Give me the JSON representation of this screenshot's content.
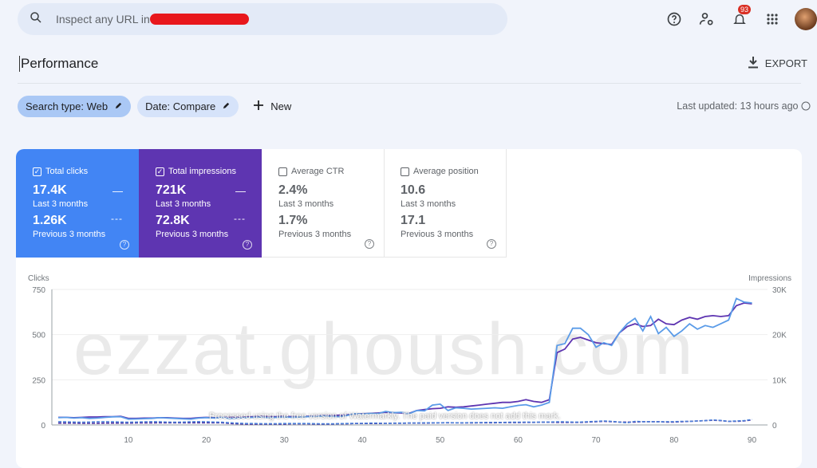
{
  "header": {
    "search_placeholder": "Inspect any URL in",
    "notification_count": "93",
    "icons": [
      "search-icon",
      "help-icon",
      "account-settings-icon",
      "bell-icon",
      "apps-grid-icon",
      "avatar"
    ]
  },
  "page": {
    "title": "Performance",
    "export_label": "EXPORT"
  },
  "filters": {
    "chips": [
      {
        "label": "Search type: Web"
      },
      {
        "label": "Date: Compare"
      }
    ],
    "new_label": "New",
    "last_updated": "Last updated: 13 hours ago"
  },
  "metrics": [
    {
      "label": "Total clicks",
      "checked": true,
      "current": "17.4K",
      "current_label": "Last 3 months",
      "previous": "1.26K",
      "previous_label": "Previous 3 months",
      "color": "#4285f4"
    },
    {
      "label": "Total impressions",
      "checked": true,
      "current": "721K",
      "current_label": "Last 3 months",
      "previous": "72.8K",
      "previous_label": "Previous 3 months",
      "color": "#5e35b1"
    },
    {
      "label": "Average CTR",
      "checked": false,
      "current": "2.4%",
      "current_label": "Last 3 months",
      "previous": "1.7%",
      "previous_label": "Previous 3 months"
    },
    {
      "label": "Average position",
      "checked": false,
      "current": "10.6",
      "current_label": "Last 3 months",
      "previous": "17.1",
      "previous_label": "Previous 3 months"
    }
  ],
  "watermark": {
    "site": "ezzat.ghoush.com",
    "notice": "Processed using the free version of Watermarkly. The paid version does not add this mark."
  },
  "chart_data": {
    "type": "line",
    "ylabel_left": "Clicks",
    "ylabel_right": "Impressions",
    "yticks_left": [
      "0",
      "250",
      "500",
      "750"
    ],
    "yticks_right": [
      "0",
      "10K",
      "20K",
      "30K"
    ],
    "ylim_left": [
      0,
      750
    ],
    "ylim_right": [
      0,
      30000
    ],
    "xlim": [
      1,
      92
    ],
    "xticks": [
      "10",
      "20",
      "30",
      "40",
      "50",
      "60",
      "70",
      "80",
      "90"
    ],
    "grid": true,
    "series": [
      {
        "key": "clicks",
        "axis": "left",
        "color": "#5a9be8",
        "dashed": false,
        "values": [
          40,
          42,
          38,
          40,
          36,
          38,
          42,
          45,
          46,
          32,
          33,
          35,
          36,
          40,
          38,
          36,
          34,
          32,
          38,
          40,
          38,
          42,
          36,
          38,
          40,
          42,
          44,
          40,
          42,
          44,
          42,
          44,
          46,
          48,
          50,
          48,
          46,
          52,
          62,
          60,
          64,
          62,
          75,
          68,
          70,
          62,
          80,
          78,
          110,
          115,
          80,
          95,
          92,
          88,
          90,
          92,
          95,
          92,
          100,
          108,
          112,
          100,
          110,
          125,
          440,
          450,
          535,
          535,
          500,
          430,
          455,
          440,
          510,
          560,
          590,
          520,
          600,
          505,
          540,
          490,
          520,
          560,
          530,
          550,
          540,
          560,
          580,
          700,
          680,
          675
        ]
      },
      {
        "key": "impressions",
        "axis": "right",
        "color": "#5e35b1",
        "dashed": false,
        "values": [
          1680,
          1680,
          1600,
          1680,
          1760,
          1760,
          1840,
          1840,
          1920,
          1440,
          1440,
          1520,
          1520,
          1600,
          1600,
          1520,
          1440,
          1440,
          1600,
          1680,
          1600,
          1680,
          1680,
          1680,
          1760,
          1840,
          1920,
          1840,
          1840,
          1920,
          1840,
          1840,
          1920,
          2000,
          2080,
          2080,
          2160,
          2240,
          2400,
          2480,
          2560,
          2640,
          2800,
          2720,
          2640,
          2560,
          3200,
          3400,
          3600,
          3680,
          4000,
          3920,
          4000,
          4200,
          4400,
          4600,
          4800,
          5000,
          5000,
          5200,
          5600,
          5200,
          5000,
          5600,
          16000,
          16800,
          19000,
          19400,
          18800,
          18200,
          18000,
          17800,
          20400,
          21800,
          22400,
          21800,
          22000,
          23400,
          22400,
          22200,
          23200,
          23800,
          23400,
          24000,
          24200,
          24000,
          24200,
          26400,
          27000,
          26800
        ]
      },
      {
        "key": "clicks_previous",
        "axis": "left",
        "color": "#4a7fd8",
        "dashed": true,
        "values": [
          18,
          17,
          16,
          15,
          16,
          17,
          18,
          17,
          16,
          15,
          16,
          17,
          18,
          17,
          16,
          15,
          16,
          17,
          18,
          17,
          16,
          15,
          12,
          10,
          8,
          8,
          7,
          7,
          7,
          8,
          8,
          8,
          8,
          7,
          6,
          6,
          7,
          8,
          9,
          9,
          10,
          10,
          9,
          10,
          10,
          11,
          11,
          12,
          12,
          12,
          13,
          12,
          12,
          13,
          13,
          14,
          14,
          14,
          15,
          15,
          16,
          15,
          16,
          16,
          17,
          17,
          16,
          16,
          18,
          20,
          22,
          20,
          16,
          12,
          20,
          18,
          18,
          17,
          18,
          18,
          20,
          20,
          22,
          24,
          28,
          25,
          20,
          22,
          24,
          30
        ]
      },
      {
        "key": "impressions_previous",
        "axis": "right",
        "color": "#4b2c9e",
        "dashed": true,
        "values": [
          400,
          400,
          400,
          360,
          360,
          360,
          400,
          400,
          400,
          400,
          440,
          440,
          440,
          480,
          480,
          480,
          480,
          480,
          480,
          480,
          480,
          480,
          320,
          240,
          200,
          200,
          200,
          200,
          200,
          200,
          240,
          240,
          240,
          200,
          200,
          200,
          240,
          240,
          320,
          320,
          320,
          320,
          360,
          360,
          360,
          400,
          400,
          400,
          440,
          480,
          480,
          480,
          440,
          440,
          480,
          480,
          480,
          520,
          520,
          520,
          560,
          560,
          600,
          600,
          560,
          560,
          560,
          560,
          640,
          720,
          800,
          720,
          640,
          640,
          640,
          720,
          720,
          720,
          640,
          640,
          720,
          800,
          880,
          960,
          1040,
          960,
          800,
          800,
          880,
          1120
        ]
      }
    ]
  }
}
